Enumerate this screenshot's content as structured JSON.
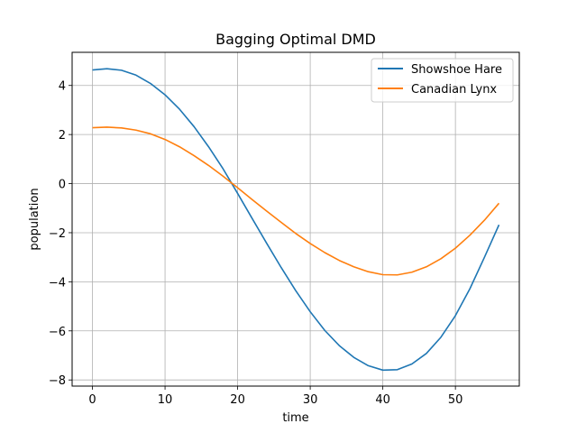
{
  "chart_data": {
    "type": "line",
    "title": "Bagging Optimal DMD",
    "xlabel": "time",
    "ylabel": "population",
    "xlim": [
      -2.8,
      58.8
    ],
    "ylim": [
      -8.25,
      5.35
    ],
    "xticks": [
      0,
      10,
      20,
      30,
      40,
      50
    ],
    "yticks": [
      -8,
      -6,
      -4,
      -2,
      0,
      2,
      4
    ],
    "ytick_labels": [
      "−8",
      "−6",
      "−4",
      "−2",
      "0",
      "2",
      "4"
    ],
    "grid": true,
    "legend_position": "top-right",
    "x": [
      0,
      2,
      4,
      6,
      8,
      10,
      12,
      14,
      16,
      18,
      20,
      22,
      24,
      26,
      28,
      30,
      32,
      34,
      36,
      38,
      40,
      42,
      44,
      46,
      48,
      50,
      52,
      54,
      56
    ],
    "series": [
      {
        "name": "Showshoe Hare",
        "color": "#1f77b4",
        "values": [
          4.63,
          4.68,
          4.62,
          4.42,
          4.08,
          3.62,
          3.03,
          2.32,
          1.5,
          0.6,
          -0.4,
          -1.42,
          -2.43,
          -3.42,
          -4.36,
          -5.22,
          -5.98,
          -6.6,
          -7.08,
          -7.42,
          -7.6,
          -7.58,
          -7.35,
          -6.92,
          -6.26,
          -5.38,
          -4.28,
          -3.0,
          -1.68
        ]
      },
      {
        "name": "Canadian Lynx",
        "color": "#ff7f0e",
        "values": [
          2.28,
          2.3,
          2.27,
          2.18,
          2.03,
          1.8,
          1.5,
          1.14,
          0.74,
          0.3,
          -0.17,
          -0.65,
          -1.12,
          -1.58,
          -2.03,
          -2.44,
          -2.81,
          -3.13,
          -3.39,
          -3.59,
          -3.71,
          -3.72,
          -3.61,
          -3.39,
          -3.06,
          -2.63,
          -2.1,
          -1.49,
          -0.8
        ]
      }
    ]
  }
}
